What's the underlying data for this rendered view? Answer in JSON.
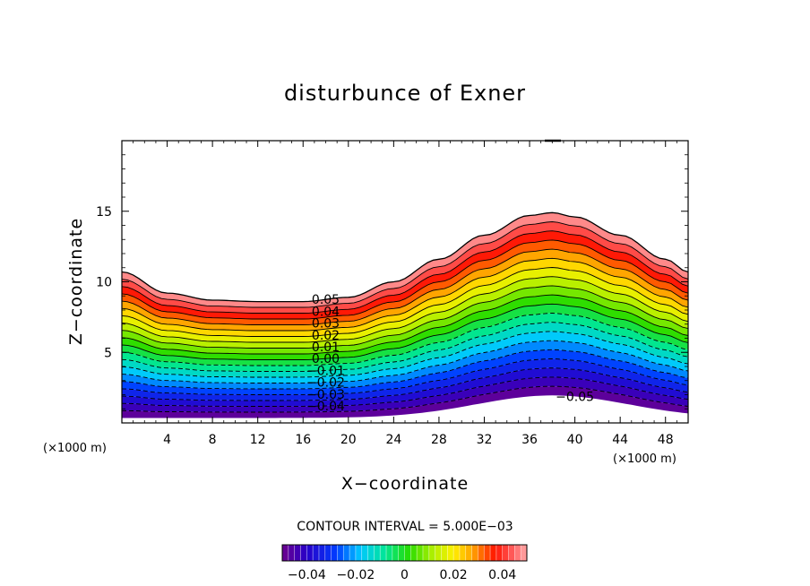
{
  "chart_data": {
    "type": "contour",
    "title": "disturbunce of Exner",
    "xlabel": "X−coordinate",
    "ylabel": "Z−coordinate",
    "x_unit_left": "(×1000 m)",
    "x_unit_right": "(×1000 m)",
    "xlim": [
      0,
      50
    ],
    "ylim": [
      0,
      20
    ],
    "x_ticks": [
      4,
      8,
      12,
      16,
      20,
      24,
      28,
      32,
      36,
      40,
      44,
      48
    ],
    "x_tick_labels": [
      "4",
      "8",
      "12",
      "16",
      "20",
      "24",
      "28",
      "32",
      "36",
      "40",
      "44",
      "48"
    ],
    "y_ticks": [
      5,
      10,
      15
    ],
    "y_tick_labels": [
      "5",
      "10",
      "15"
    ],
    "contour_interval_text": "CONTOUR INTERVAL = 5.000E−03",
    "contour_interval": 0.005,
    "field_range": [
      -0.05,
      0.05
    ],
    "surface_profile": {
      "x": [
        0,
        4,
        8,
        12,
        16,
        20,
        24,
        28,
        32,
        36,
        38,
        40,
        44,
        48,
        50
      ],
      "z_top": [
        10.7,
        9.2,
        8.7,
        8.6,
        8.6,
        8.9,
        10.0,
        11.6,
        13.3,
        14.7,
        14.9,
        14.6,
        13.3,
        11.6,
        10.7
      ]
    },
    "contour_labels": [
      {
        "text": "0.05",
        "value": 0.05
      },
      {
        "text": "0.04",
        "value": 0.04
      },
      {
        "text": "0.03",
        "value": 0.03
      },
      {
        "text": "0.02",
        "value": 0.02
      },
      {
        "text": "0.01",
        "value": 0.01
      },
      {
        "text": "0.00",
        "value": 0.0
      },
      {
        "text": "−0.01",
        "value": -0.01
      },
      {
        "text": "−0.02",
        "value": -0.02
      },
      {
        "text": "−0.03",
        "value": -0.03
      },
      {
        "text": "−0.04",
        "value": -0.04
      },
      {
        "text": "−0.05",
        "value": -0.05
      }
    ],
    "colorbar": {
      "min": -0.05,
      "max": 0.05,
      "ticks": [
        -0.04,
        -0.02,
        0,
        0.02,
        0.04
      ],
      "tick_labels": [
        "−0.04",
        "−0.02",
        "0",
        "0.02",
        "0.04"
      ]
    }
  }
}
